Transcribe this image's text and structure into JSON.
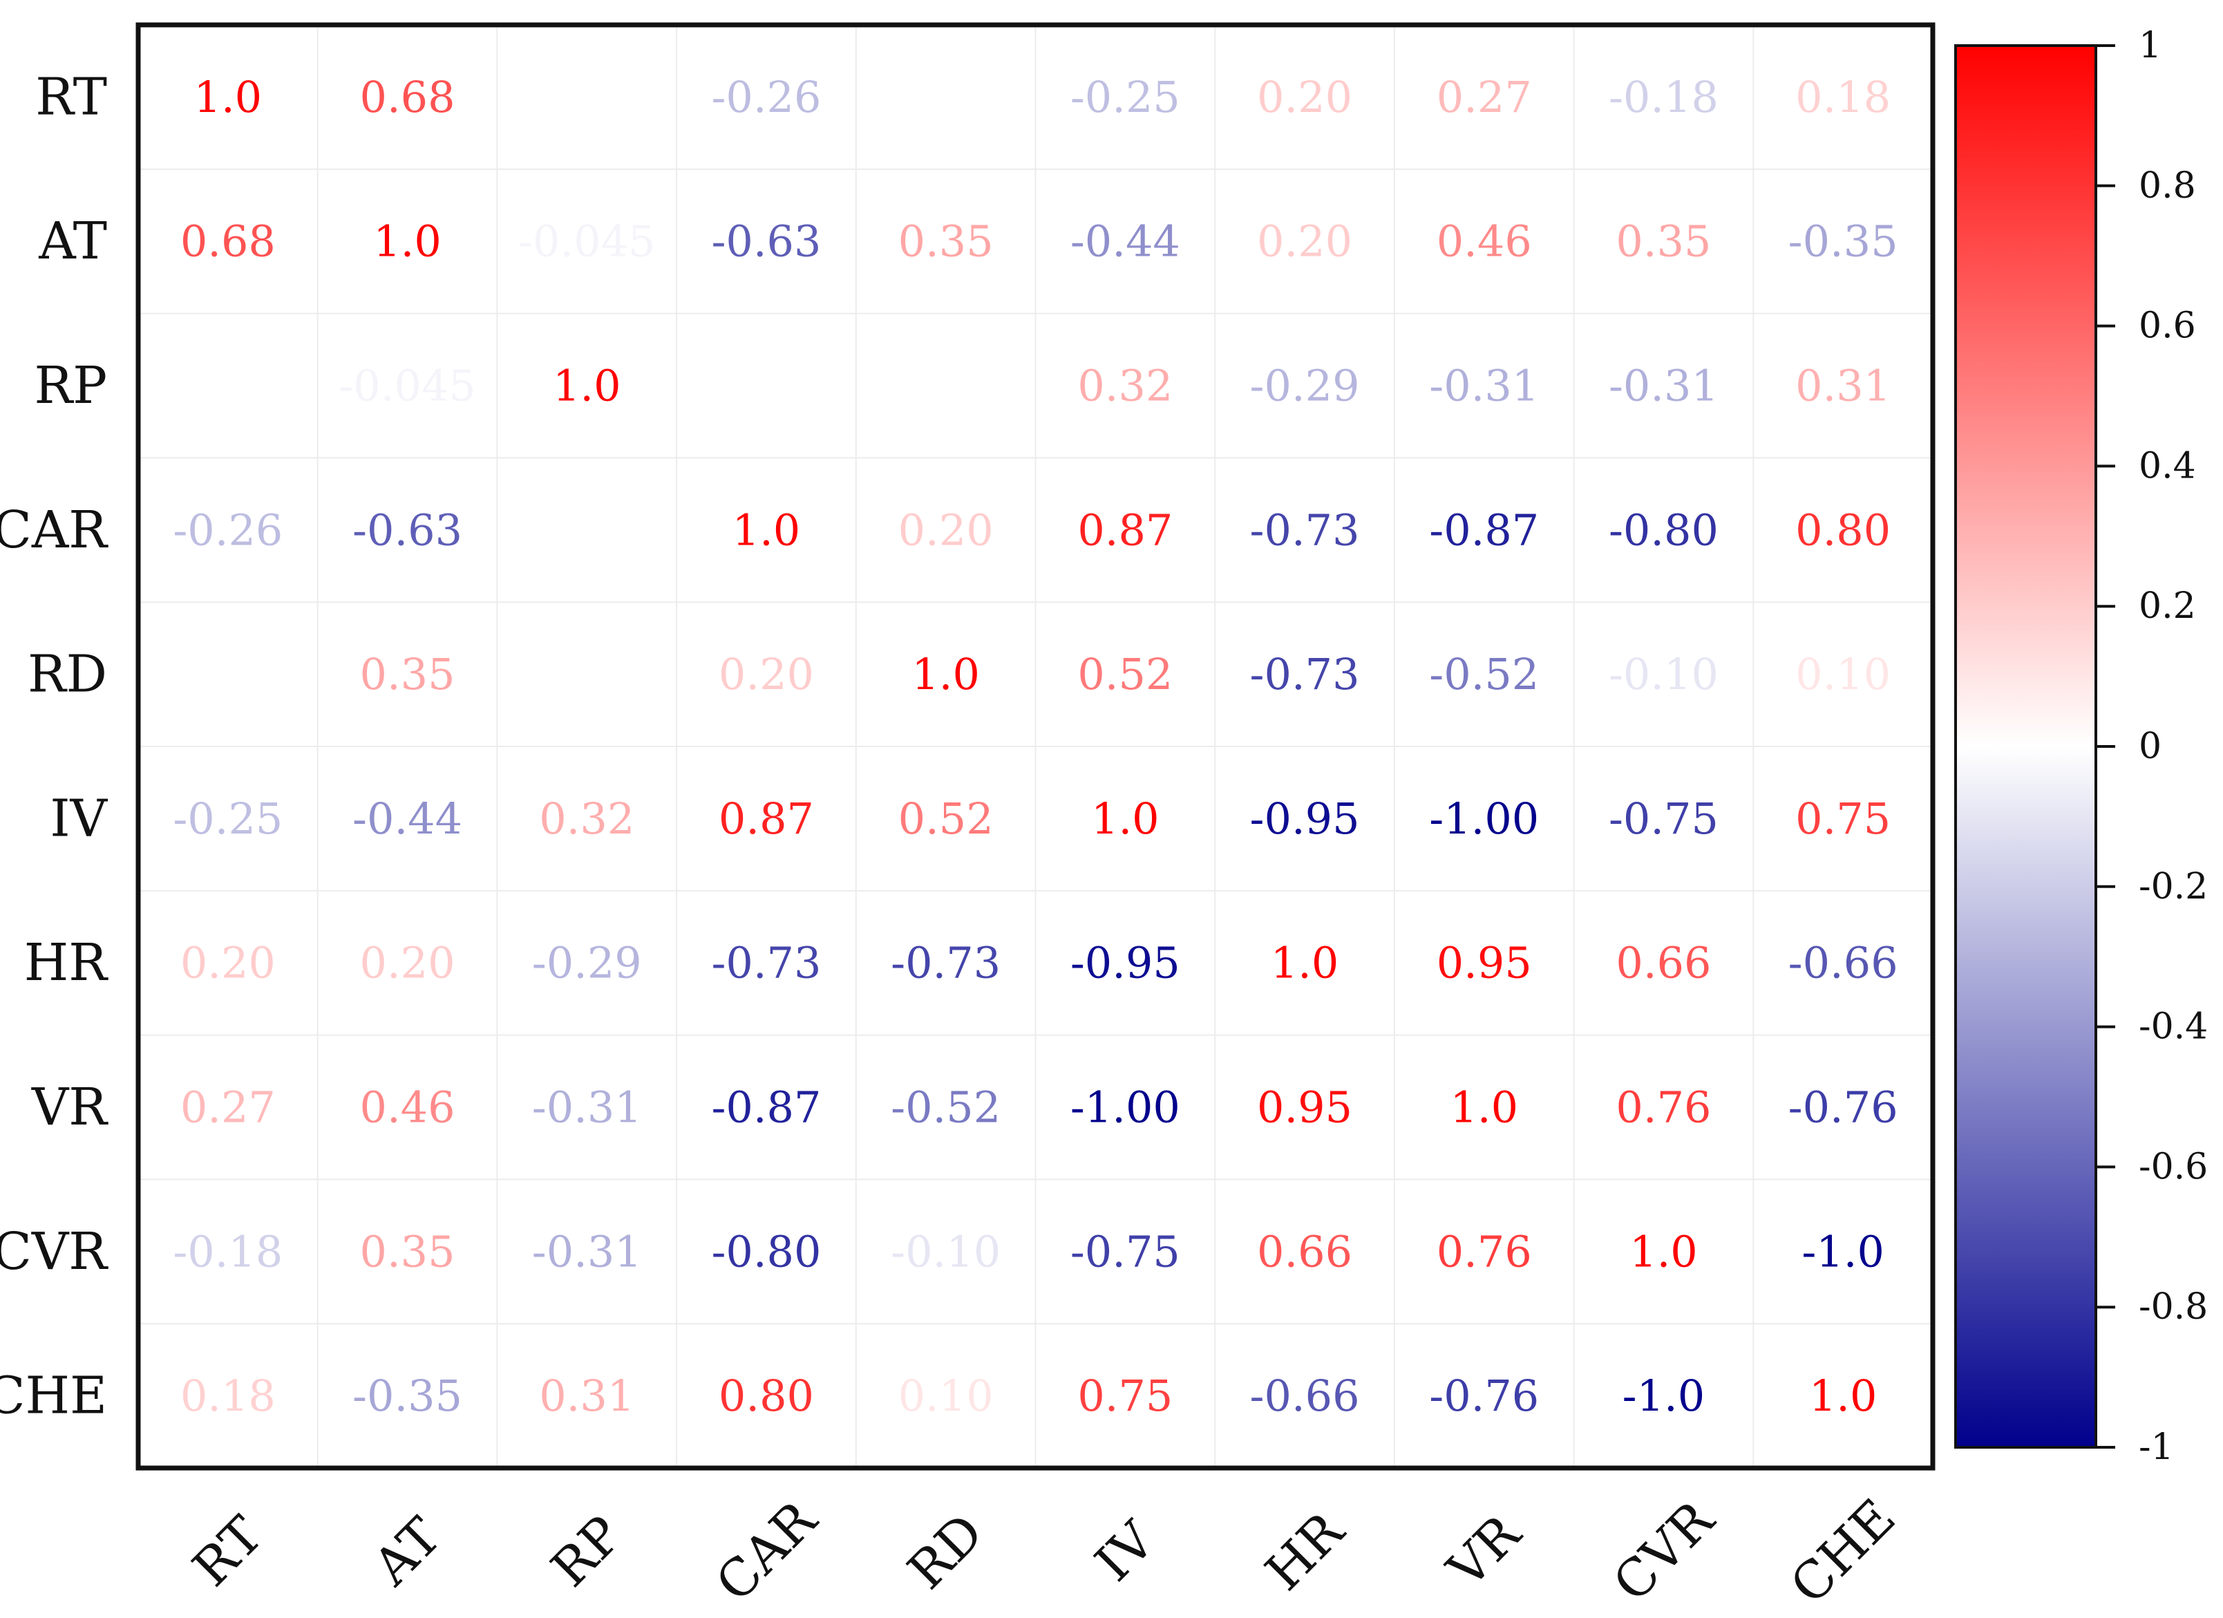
{
  "chart_data": {
    "type": "heatmap",
    "title": "",
    "xlabel": "",
    "ylabel": "",
    "grid": true,
    "legend": "right",
    "colorscale": {
      "low": "#00008c",
      "mid": "#ffffff",
      "high": "#ff0000",
      "range": [
        -1,
        1
      ]
    },
    "row_labels": [
      "RT",
      "AT",
      "RP",
      "CAR",
      "RD",
      "IV",
      "HR",
      "VR",
      "CVR",
      "CHE"
    ],
    "col_labels": [
      "RT",
      "AT",
      "RP",
      "CAR",
      "RD",
      "IV",
      "HR",
      "VR",
      "CVR",
      "CHE"
    ],
    "values": [
      [
        1.0,
        0.68,
        null,
        -0.26,
        null,
        -0.25,
        0.2,
        0.27,
        -0.18,
        0.18
      ],
      [
        0.68,
        1.0,
        -0.045,
        -0.63,
        0.35,
        -0.44,
        0.2,
        0.46,
        0.35,
        -0.35
      ],
      [
        null,
        -0.045,
        1.0,
        null,
        null,
        0.32,
        -0.29,
        -0.31,
        -0.31,
        0.31
      ],
      [
        -0.26,
        -0.63,
        null,
        1.0,
        0.2,
        0.87,
        -0.73,
        -0.87,
        -0.8,
        0.8
      ],
      [
        null,
        0.35,
        null,
        0.2,
        1.0,
        0.52,
        -0.73,
        -0.52,
        -0.1,
        0.1
      ],
      [
        -0.25,
        -0.44,
        0.32,
        0.87,
        0.52,
        1.0,
        -0.95,
        -1.0,
        -0.75,
        0.75
      ],
      [
        0.2,
        0.2,
        -0.29,
        -0.73,
        -0.73,
        -0.95,
        1.0,
        0.95,
        0.66,
        -0.66
      ],
      [
        0.27,
        0.46,
        -0.31,
        -0.87,
        -0.52,
        -1.0,
        0.95,
        1.0,
        0.76,
        -0.76
      ],
      [
        -0.18,
        0.35,
        -0.31,
        -0.8,
        -0.1,
        -0.75,
        0.66,
        0.76,
        1.0,
        -1.0
      ],
      [
        0.18,
        -0.35,
        0.31,
        0.8,
        0.1,
        0.75,
        -0.66,
        -0.76,
        -1.0,
        1.0
      ]
    ],
    "labels": [
      [
        "1.0",
        "0.68",
        "",
        "-0.26",
        "",
        "-0.25",
        "0.20",
        "0.27",
        "-0.18",
        "0.18"
      ],
      [
        "0.68",
        "1.0",
        "-0.045",
        "-0.63",
        "0.35",
        "-0.44",
        "0.20",
        "0.46",
        "0.35",
        "-0.35"
      ],
      [
        "",
        "-0.045",
        "1.0",
        "",
        "",
        "0.32",
        "-0.29",
        "-0.31",
        "-0.31",
        "0.31"
      ],
      [
        "-0.26",
        "-0.63",
        "",
        "1.0",
        "0.20",
        "0.87",
        "-0.73",
        "-0.87",
        "-0.80",
        "0.80"
      ],
      [
        "",
        "0.35",
        "",
        "0.20",
        "1.0",
        "0.52",
        "-0.73",
        "-0.52",
        "-0.10",
        "0.10"
      ],
      [
        "-0.25",
        "-0.44",
        "0.32",
        "0.87",
        "0.52",
        "1.0",
        "-0.95",
        "-1.00",
        "-0.75",
        "0.75"
      ],
      [
        "0.20",
        "0.20",
        "-0.29",
        "-0.73",
        "-0.73",
        "-0.95",
        "1.0",
        "0.95",
        "0.66",
        "-0.66"
      ],
      [
        "0.27",
        "0.46",
        "-0.31",
        "-0.87",
        "-0.52",
        "-1.00",
        "0.95",
        "1.0",
        "0.76",
        "-0.76"
      ],
      [
        "-0.18",
        "0.35",
        "-0.31",
        "-0.80",
        "-0.10",
        "-0.75",
        "0.66",
        "0.76",
        "1.0",
        "-1.0"
      ],
      [
        "0.18",
        "-0.35",
        "0.31",
        "0.80",
        "0.10",
        "0.75",
        "-0.66",
        "-0.76",
        "-1.0",
        "1.0"
      ]
    ],
    "colorbar": {
      "ticks": [
        1,
        0.8,
        0.6,
        0.4,
        0.2,
        0,
        -0.2,
        -0.4,
        -0.6,
        -0.8,
        -1
      ],
      "tick_labels": [
        "1",
        "0.8",
        "0.6",
        "0.4",
        "0.2",
        "0",
        "-0.2",
        "-0.4",
        "-0.6",
        "-0.8",
        "-1"
      ]
    }
  }
}
